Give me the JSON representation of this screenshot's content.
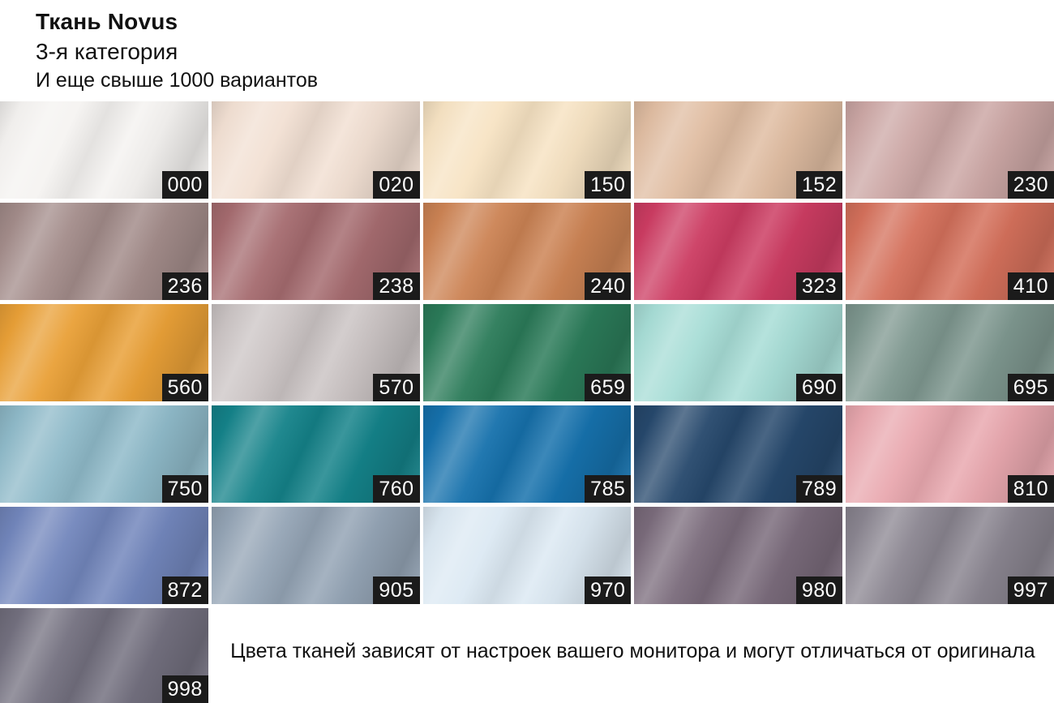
{
  "header": {
    "title": "Ткань Novus",
    "subtitle": "3-я категория",
    "note": "И еще свыше 1000 вариантов"
  },
  "footer": {
    "disclaimer": "Цвета тканей зависят от настроек вашего монитора и могут отличаться от оригинала"
  },
  "badge": {
    "background": "#1b1b1b",
    "text_color": "#ffffff"
  },
  "swatches": [
    {
      "code": "000",
      "color": "#f5f3f1"
    },
    {
      "code": "020",
      "color": "#f2e0d3"
    },
    {
      "code": "150",
      "color": "#f7e3c3"
    },
    {
      "code": "152",
      "color": "#e0bda2"
    },
    {
      "code": "230",
      "color": "#cca7a5"
    },
    {
      "code": "236",
      "color": "#a38c8a"
    },
    {
      "code": "238",
      "color": "#a56b6f"
    },
    {
      "code": "240",
      "color": "#cc8354"
    },
    {
      "code": "323",
      "color": "#cc3c62"
    },
    {
      "code": "410",
      "color": "#d4705b"
    },
    {
      "code": "560",
      "color": "#e9a037"
    },
    {
      "code": "570",
      "color": "#cbc4c4"
    },
    {
      "code": "659",
      "color": "#2b7b59"
    },
    {
      "code": "690",
      "color": "#a7ddd6"
    },
    {
      "code": "695",
      "color": "#7e978f"
    },
    {
      "code": "750",
      "color": "#8fbac9"
    },
    {
      "code": "760",
      "color": "#148289"
    },
    {
      "code": "785",
      "color": "#1671ac"
    },
    {
      "code": "789",
      "color": "#26486c"
    },
    {
      "code": "810",
      "color": "#e9a8af"
    },
    {
      "code": "872",
      "color": "#7286bc"
    },
    {
      "code": "905",
      "color": "#94a4b5"
    },
    {
      "code": "970",
      "color": "#dce9f3"
    },
    {
      "code": "980",
      "color": "#7a6b7b"
    },
    {
      "code": "997",
      "color": "#8a8590"
    },
    {
      "code": "998",
      "color": "#73707f"
    }
  ]
}
